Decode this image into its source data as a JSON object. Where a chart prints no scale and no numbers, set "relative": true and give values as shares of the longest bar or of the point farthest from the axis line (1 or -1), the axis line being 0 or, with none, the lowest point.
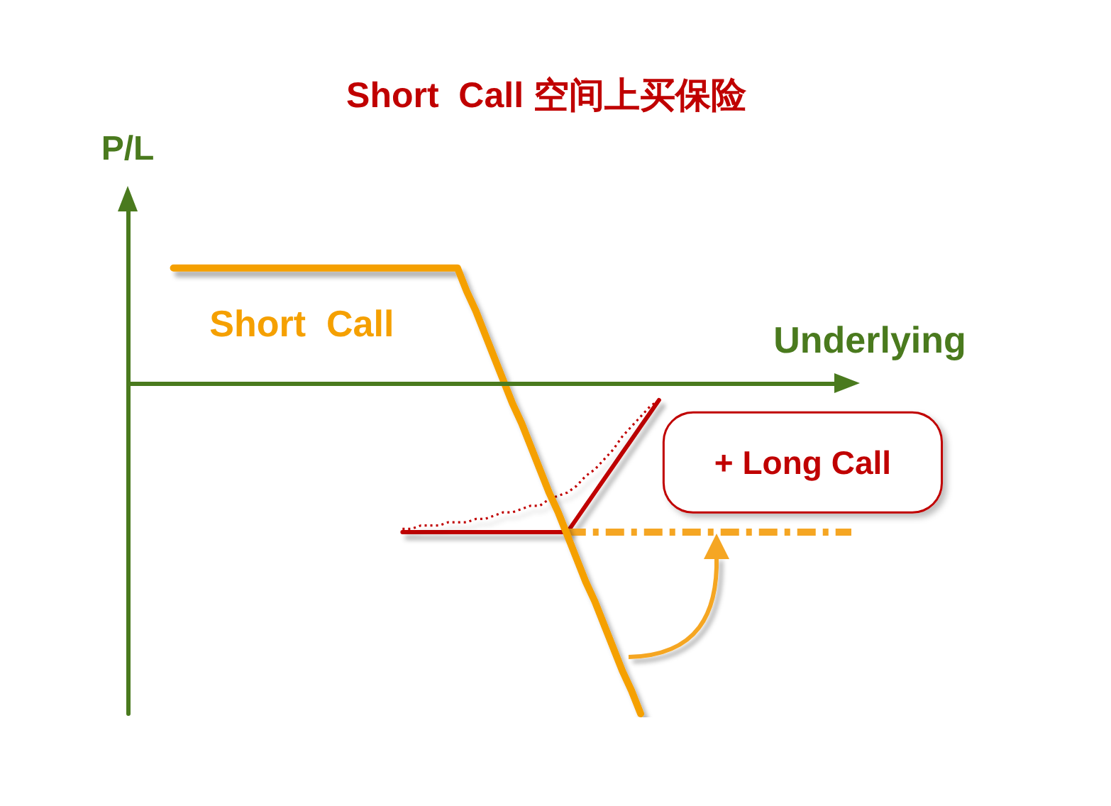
{
  "chart_data": {
    "type": "line",
    "title": "Short  Call 空间上买保险",
    "xlabel": "Underlying",
    "ylabel": "P/L",
    "relative": true,
    "marker": "none",
    "line_style": "solid",
    "ref_lines": [
      {
        "axis": "y",
        "value": 0,
        "color": "#4a7a1e"
      }
    ],
    "categories": [
      null,
      null,
      null,
      null,
      null,
      null,
      null,
      null,
      null,
      null,
      null,
      null,
      null,
      null,
      null,
      null,
      null,
      null,
      null,
      null,
      null,
      null,
      null,
      null,
      null,
      null,
      null,
      null,
      null,
      null,
      null,
      null,
      null,
      null,
      null,
      null,
      null,
      null,
      null,
      null,
      null,
      null,
      null,
      null,
      null,
      null,
      null,
      null,
      null,
      null,
      null,
      null,
      null,
      null,
      null,
      null,
      null,
      null,
      null,
      null,
      null,
      null,
      null,
      null,
      null,
      null,
      null,
      null,
      null,
      null,
      null,
      null,
      null,
      null,
      null,
      null,
      null,
      null,
      null,
      null
    ],
    "series": [
      {
        "name": "Short  Call",
        "color": "#f5a000",
        "values": [
          null,
          null,
          null,
          null,
          null,
          0.35,
          0.35,
          0.35,
          0.35,
          0.35,
          0.35,
          0.35,
          0.35,
          0.35,
          0.35,
          0.35,
          0.35,
          0.35,
          0.35,
          0.35,
          0.35,
          0.35,
          0.35,
          0.35,
          0.35,
          0.35,
          0.35,
          0.35,
          0.35,
          0.35,
          0.35,
          0.35,
          0.35,
          0.35,
          0.35,
          0.35,
          0.35,
          0.28,
          0.22,
          0.15,
          0.08,
          0.01,
          -0.06,
          -0.12,
          -0.19,
          -0.26,
          -0.33,
          -0.39,
          -0.46,
          -0.53,
          -0.6,
          -0.66,
          -0.73,
          -0.8,
          -0.87,
          -0.93,
          -1,
          null,
          null,
          null,
          null,
          null,
          null,
          null,
          null,
          null,
          null,
          null,
          null,
          null,
          null,
          null,
          null,
          null,
          null,
          null,
          null,
          null,
          null,
          null
        ]
      },
      {
        "name": "+ Long Call",
        "color": "#c00000",
        "values": [
          null,
          null,
          null,
          null,
          null,
          null,
          null,
          null,
          null,
          null,
          null,
          null,
          null,
          null,
          null,
          null,
          null,
          null,
          null,
          null,
          null,
          null,
          null,
          null,
          null,
          null,
          null,
          null,
          null,
          null,
          -0.45,
          -0.45,
          -0.45,
          -0.45,
          -0.45,
          -0.45,
          -0.45,
          -0.45,
          -0.45,
          -0.45,
          -0.45,
          -0.45,
          -0.45,
          -0.45,
          -0.45,
          -0.45,
          -0.45,
          -0.45,
          -0.45,
          -0.41,
          -0.37,
          -0.33,
          -0.29,
          -0.25,
          -0.21,
          -0.17,
          -0.13,
          -0.09,
          -0.05,
          null,
          null,
          null,
          null,
          null,
          null,
          null,
          null,
          null,
          null,
          null,
          null,
          null,
          null,
          null,
          null,
          null,
          null,
          null,
          null,
          null
        ]
      },
      {
        "color": "#c00000",
        "line_style": "dotted",
        "values": [
          null,
          null,
          null,
          null,
          null,
          null,
          null,
          null,
          null,
          null,
          null,
          null,
          null,
          null,
          null,
          null,
          null,
          null,
          null,
          null,
          null,
          null,
          null,
          null,
          null,
          null,
          null,
          null,
          null,
          null,
          -0.44,
          -0.44,
          -0.43,
          -0.43,
          -0.43,
          -0.42,
          -0.42,
          -0.42,
          -0.41,
          -0.41,
          -0.4,
          -0.39,
          -0.39,
          -0.38,
          -0.37,
          -0.37,
          -0.35,
          -0.34,
          -0.33,
          -0.31,
          -0.28,
          -0.26,
          -0.23,
          -0.2,
          -0.16,
          -0.13,
          -0.1,
          -0.07,
          -0.05,
          null,
          null,
          null,
          null,
          null,
          null,
          null,
          null,
          null,
          null,
          null,
          null,
          null,
          null,
          null,
          null,
          null,
          null,
          null,
          null,
          null
        ]
      },
      {
        "color": "#f5a623",
        "line_style": "dashed",
        "values": [
          null,
          null,
          null,
          null,
          null,
          null,
          null,
          null,
          null,
          null,
          null,
          null,
          null,
          null,
          null,
          null,
          null,
          null,
          null,
          null,
          null,
          null,
          null,
          null,
          null,
          null,
          null,
          null,
          null,
          null,
          null,
          null,
          null,
          null,
          null,
          null,
          null,
          null,
          null,
          null,
          null,
          null,
          null,
          null,
          null,
          null,
          null,
          null,
          -0.45,
          -0.45,
          -0.45,
          -0.45,
          -0.45,
          -0.45,
          -0.45,
          -0.45,
          -0.45,
          -0.45,
          -0.45,
          -0.45,
          -0.45,
          -0.45,
          -0.45,
          -0.45,
          -0.45,
          -0.45,
          -0.45,
          -0.45,
          -0.45,
          -0.45,
          -0.45,
          -0.45,
          -0.45,
          -0.45,
          -0.45,
          -0.45,
          -0.45,
          -0.45,
          -0.45,
          -0.45
        ]
      }
    ]
  }
}
